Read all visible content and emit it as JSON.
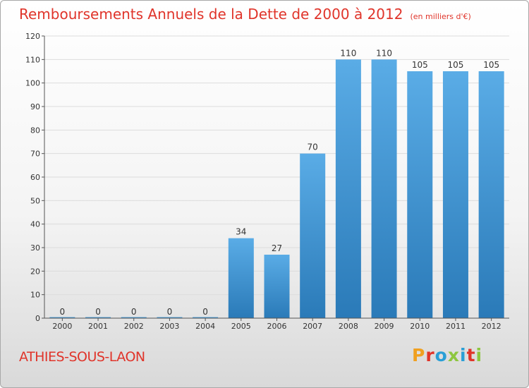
{
  "header": {
    "title": "Remboursements Annuels de la Dette de 2000 à 2012",
    "unit": "(en milliers d'€)"
  },
  "footer": {
    "commune": "ATHIES-SOUS-LAON",
    "logo_text": "Proxiti",
    "logo_colors": [
      "#f0a020",
      "#e0342a",
      "#2a9fd6",
      "#8dc63f",
      "#2a9fd6",
      "#e0342a",
      "#8dc63f"
    ]
  },
  "colors": {
    "bar_top": "#5aace6",
    "bar_bottom": "#2a7ab8",
    "accent": "#e0342a",
    "grid": "#dcdcdc"
  },
  "chart_data": {
    "type": "bar",
    "title": "Remboursements Annuels de la Dette de 2000 à 2012",
    "subtitle": "(en milliers d'€)",
    "categories": [
      "2000",
      "2001",
      "2002",
      "2003",
      "2004",
      "2005",
      "2006",
      "2007",
      "2008",
      "2009",
      "2010",
      "2011",
      "2012"
    ],
    "values": [
      0,
      0,
      0,
      0,
      0,
      34,
      27,
      70,
      110,
      110,
      105,
      105,
      105
    ],
    "ylim": [
      0,
      120
    ],
    "yticks": [
      0,
      10,
      20,
      30,
      40,
      50,
      60,
      70,
      80,
      90,
      100,
      110,
      120
    ],
    "xlabel": "",
    "ylabel": "",
    "grid": true,
    "data_labels": true
  }
}
